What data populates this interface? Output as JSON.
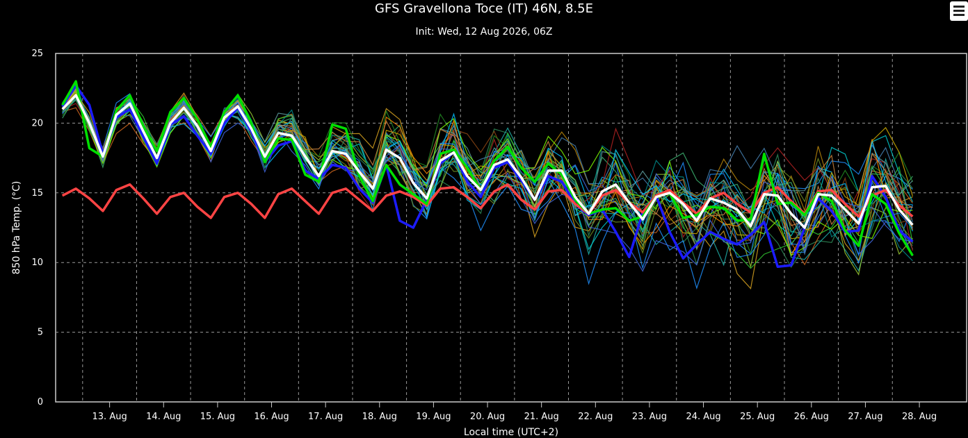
{
  "header": {
    "title": "GFS Gravellona Toce (IT) 46N, 8.5E",
    "subtitle": "Init: Wed, 12 Aug 2026, 06Z",
    "menu_icon": "hamburger-menu-icon"
  },
  "chart_data": {
    "type": "line",
    "title": "GFS Gravellona Toce (IT) 46N, 8.5E",
    "subtitle": "Init: Wed, 12 Aug 2026, 06Z",
    "xlabel": "Local time (UTC+2)",
    "ylabel": "850 hPa Temp. (°C)",
    "ylim": [
      0,
      25
    ],
    "yticks": [
      0,
      5,
      10,
      15,
      20,
      25
    ],
    "xlim": [
      "2026-08-12T12:00",
      "2026-08-29T09:00"
    ],
    "xticks": [
      "13. Aug",
      "14. Aug",
      "15. Aug",
      "16. Aug",
      "17. Aug",
      "18. Aug",
      "19. Aug",
      "20. Aug",
      "21. Aug",
      "22. Aug",
      "23. Aug",
      "24. Aug",
      "25. Aug",
      "26. Aug",
      "27. Aug",
      "28. Aug"
    ],
    "xtick_dates": [
      "2026-08-13",
      "2026-08-14",
      "2026-08-15",
      "2026-08-16",
      "2026-08-17",
      "2026-08-18",
      "2026-08-19",
      "2026-08-20",
      "2026-08-21",
      "2026-08-22",
      "2026-08-23",
      "2026-08-24",
      "2026-08-25",
      "2026-08-26",
      "2026-08-27",
      "2026-08-28"
    ],
    "grid": true,
    "legend": "none",
    "x_step_hours": 6,
    "x_start": "2026-08-12T15:00",
    "series": [
      {
        "color": "#ffffff",
        "values": [
          21.0,
          22.0,
          20.0,
          17.6,
          20.6,
          21.4,
          19.4,
          17.5,
          20.0,
          21.1,
          19.8,
          18.0,
          20.4,
          21.2,
          19.6,
          17.6,
          19.3,
          19.1,
          17.6,
          16.2,
          18.0,
          17.8,
          16.5,
          15.3,
          18.1,
          17.5,
          15.7,
          14.6,
          17.3,
          17.9,
          16.2,
          15.2,
          17.0,
          17.4,
          16.1,
          14.5,
          16.6,
          16.6,
          14.7,
          13.5,
          15.1,
          15.6,
          14.3,
          13.1,
          14.7,
          15.0,
          14.2,
          13.0,
          14.6,
          14.3,
          13.8,
          12.6,
          14.9,
          14.8,
          13.5,
          12.5,
          14.9,
          14.8,
          13.8,
          12.8,
          15.4,
          15.5,
          13.8,
          12.7
        ]
      },
      {
        "color": "#00e000",
        "values": [
          21.3,
          23.0,
          18.2,
          17.6,
          20.9,
          22.0,
          19.8,
          18.0,
          20.8,
          21.8,
          20.3,
          18.3,
          20.8,
          22.0,
          20.0,
          17.2,
          18.9,
          18.8,
          16.3,
          15.8,
          19.9,
          19.6,
          16.2,
          14.4,
          17.0,
          15.6,
          14.9,
          14.2,
          17.8,
          18.1,
          16.8,
          15.2,
          17.3,
          18.3,
          16.8,
          15.8,
          17.1,
          16.3,
          14.5,
          13.5,
          13.8,
          13.9,
          13.0,
          13.3,
          14.7,
          15.0,
          13.2,
          13.4,
          14.0,
          13.9,
          13.0,
          13.1,
          17.8,
          14.2,
          14.3,
          13.4,
          15.0,
          14.4,
          12.3,
          11.2,
          14.9,
          14.2,
          12.1,
          10.5
        ]
      },
      {
        "color": "#1c1cff",
        "values": [
          21.2,
          22.7,
          21.3,
          17.8,
          20.4,
          21.0,
          19.0,
          17.1,
          19.9,
          20.5,
          19.1,
          17.8,
          20.0,
          21.1,
          19.4,
          17.2,
          18.4,
          18.7,
          16.6,
          16.0,
          17.0,
          16.8,
          15.3,
          14.3,
          17.0,
          13.0,
          12.5,
          14.5,
          17.1,
          17.9,
          15.8,
          14.7,
          16.8,
          17.2,
          15.9,
          14.5,
          16.2,
          15.8,
          14.2,
          13.4,
          13.8,
          12.2,
          10.4,
          13.6,
          14.8,
          12.2,
          10.3,
          11.3,
          12.2,
          11.7,
          11.3,
          12.0,
          12.9,
          9.7,
          9.8,
          12.5,
          14.6,
          13.7,
          12.2,
          12.3,
          16.2,
          14.7,
          12.3,
          11.5
        ]
      },
      {
        "color": "#ff4444",
        "values": [
          14.8,
          15.3,
          14.6,
          13.7,
          15.2,
          15.6,
          14.6,
          13.5,
          14.7,
          15.0,
          14.0,
          13.2,
          14.7,
          15.0,
          14.2,
          13.2,
          14.9,
          15.3,
          14.4,
          13.5,
          15.0,
          15.3,
          14.5,
          13.7,
          14.8,
          15.1,
          14.7,
          14.1,
          15.3,
          15.4,
          14.7,
          13.9,
          15.1,
          15.6,
          14.5,
          13.8,
          15.1,
          15.2,
          14.2,
          13.5,
          14.8,
          15.2,
          14.3,
          13.6,
          14.8,
          15.2,
          14.3,
          13.5,
          14.6,
          15.0,
          14.2,
          13.6,
          15.0,
          15.4,
          14.4,
          13.5,
          15.1,
          15.2,
          14.2,
          13.3,
          14.8,
          15.2,
          14.1,
          13.3
        ]
      }
    ],
    "member_colors": [
      "#1e90ff",
      "#00bfff",
      "#2e8b57",
      "#3cb371",
      "#b8860b",
      "#daa520",
      "#d2691e",
      "#cd853f",
      "#1e90ff",
      "#20b2aa",
      "#6b8e23",
      "#9acd32",
      "#4169e1",
      "#32cd32",
      "#8b4513",
      "#00ced1",
      "#228b22",
      "#b22222",
      "#4682b4",
      "#5f9ea0",
      "#ff8c00",
      "#008b8b",
      "#7cfc00",
      "#1e90ff",
      "#ccaa00",
      "#2e8b57",
      "#3cb371",
      "#00bfff",
      "#cd853f",
      "#4169e1"
    ],
    "member_spread": [
      0.6,
      0.8,
      0.7,
      0.7,
      0.8,
      0.8,
      0.8,
      0.8,
      0.8,
      0.9,
      0.9,
      0.8,
      0.9,
      1.0,
      1.0,
      1.0,
      1.3,
      1.5,
      1.5,
      1.5,
      1.7,
      1.8,
      1.9,
      2.0,
      2.0,
      2.1,
      2.2,
      2.2,
      2.3,
      2.4,
      2.4,
      2.4,
      2.5,
      2.6,
      2.6,
      2.6,
      2.7,
      2.8,
      2.8,
      2.8,
      2.9,
      2.9,
      2.9,
      2.9,
      3.0,
      3.0,
      3.0,
      3.0,
      3.1,
      3.1,
      3.1,
      3.1,
      3.2,
      3.2,
      3.2,
      3.2,
      3.3,
      3.3,
      3.3,
      3.3,
      3.4,
      3.4,
      3.4,
      3.4
    ]
  }
}
